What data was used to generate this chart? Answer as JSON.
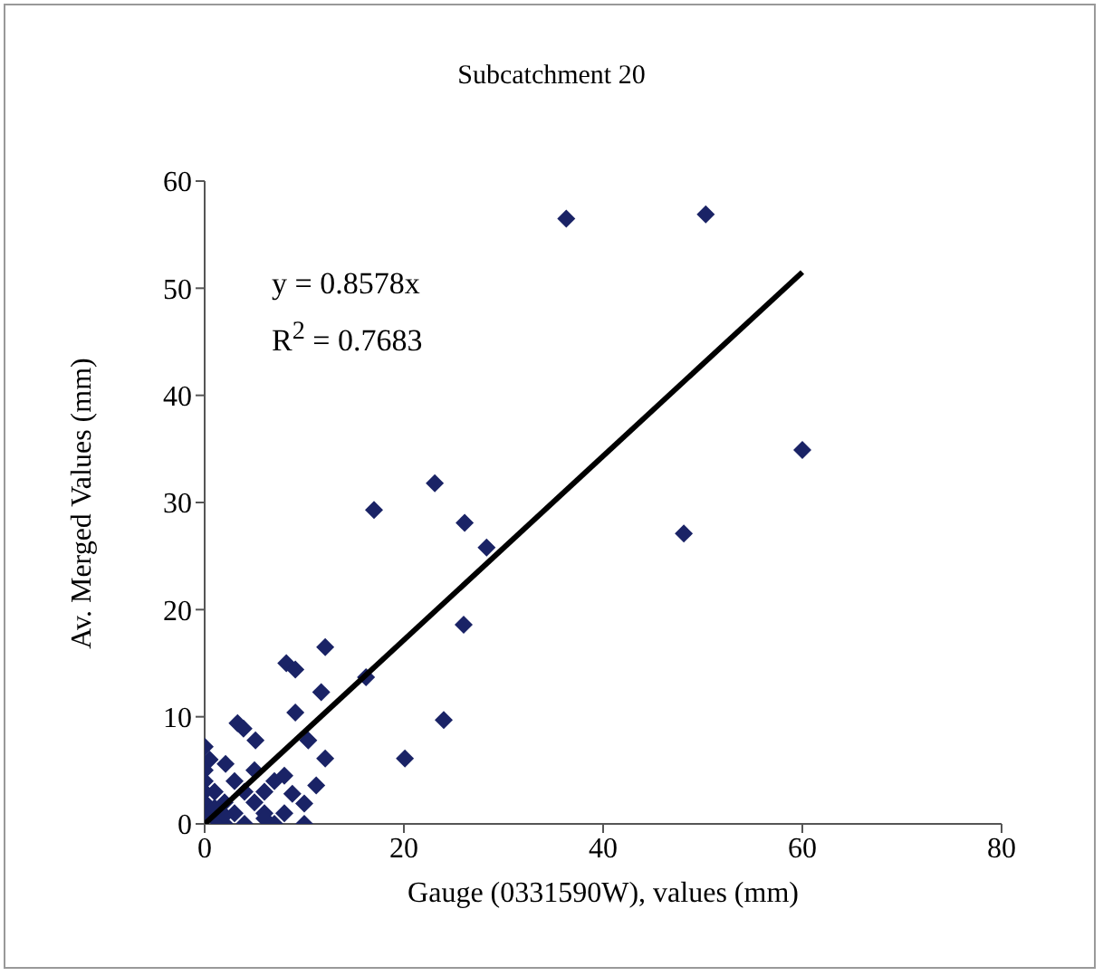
{
  "chart_data": {
    "type": "scatter",
    "title": "Subcatchment 20",
    "xlabel": "Gauge (0331590W), values (mm)",
    "ylabel": "Av. Merged Values (mm)",
    "xlim": [
      0,
      80
    ],
    "xticks": [
      0,
      20,
      40,
      60,
      80
    ],
    "ylim": [
      0,
      60
    ],
    "yticks": [
      0,
      10,
      20,
      30,
      40,
      50,
      60
    ],
    "grid": false,
    "legend": false,
    "marker": "diamond",
    "annotations": [
      "y = 0.8578x",
      "R$^{2}$ = 0.7683"
    ],
    "series": [
      {
        "type": "scatter",
        "color": "#1a2366",
        "x": [
          36.3,
          50.3,
          60,
          48.1,
          23.1,
          17,
          26.1,
          28.3,
          26,
          24,
          20.1,
          12.1,
          8.2,
          9.1,
          11.7,
          9.1,
          10.4,
          12.1,
          3.3,
          3.9,
          5.1,
          2.1,
          10,
          11.2,
          8.8,
          10,
          16.2,
          0,
          0.5,
          0,
          0,
          0,
          0,
          0,
          1,
          2,
          3,
          4,
          5,
          6,
          7,
          6,
          7,
          8,
          4,
          2,
          1,
          3,
          5,
          6,
          8,
          1,
          2
        ],
        "values": [
          56.5,
          56.9,
          34.9,
          27.1,
          31.8,
          29.3,
          28.1,
          25.8,
          18.6,
          9.7,
          6.1,
          16.5,
          15,
          14.4,
          12.3,
          10.4,
          7.8,
          6.1,
          9.4,
          8.9,
          7.8,
          5.6,
          1.9,
          3.6,
          2.8,
          0,
          13.7,
          7.2,
          6,
          5,
          4,
          3,
          2,
          1,
          0.5,
          0,
          1,
          0,
          2,
          3,
          4,
          1,
          0,
          1,
          3,
          2,
          3,
          4,
          5,
          0.5,
          4.5,
          1.5,
          0.8
        ]
      },
      {
        "type": "line",
        "color": "#000000",
        "marker": "none",
        "x": [
          0,
          60
        ],
        "values": [
          0,
          51.5
        ]
      }
    ]
  }
}
